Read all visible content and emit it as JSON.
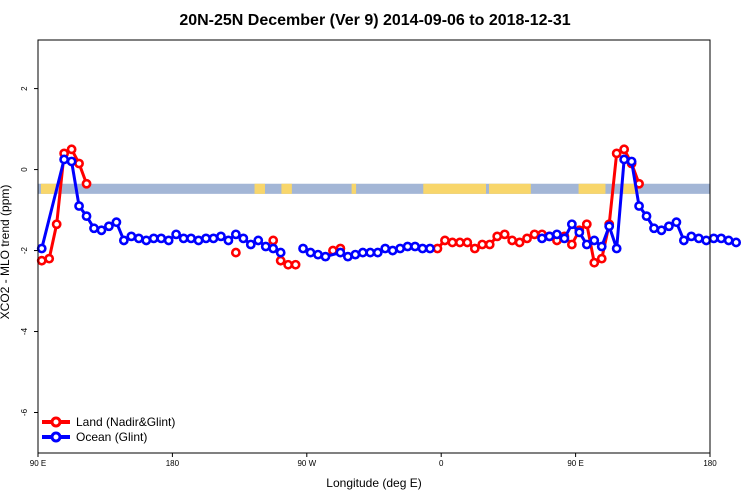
{
  "chart_data": {
    "type": "line",
    "title": "20N-25N December (Ver 9)   2014-09-06 to 2018-12-31",
    "xlabel": "Longitude (deg E)",
    "ylabel": "XCO2 - MLO trend (ppm)",
    "xlim": [
      90,
      540
    ],
    "ylim": [
      -7,
      3.2
    ],
    "x_ticks": [
      {
        "value": 90,
        "label": "90 E"
      },
      {
        "value": 180,
        "label": "180"
      },
      {
        "value": 270,
        "label": "90 W"
      },
      {
        "value": 360,
        "label": "0"
      },
      {
        "value": 450,
        "label": "90 E"
      },
      {
        "value": 540,
        "label": "180"
      }
    ],
    "y_ticks": [
      {
        "value": 2,
        "label": "2"
      },
      {
        "value": 0,
        "label": "0"
      },
      {
        "value": -2,
        "label": "-2"
      },
      {
        "value": -4,
        "label": "-4"
      },
      {
        "value": -6,
        "label": "-6"
      }
    ],
    "land_band": {
      "y_top": -0.35,
      "y_bottom": -0.6,
      "ocean_color": "#a3b6d6",
      "land_color": "#f8d66b"
    },
    "land_mask_segments": [
      [
        92,
        102
      ],
      [
        235,
        242
      ],
      [
        253,
        260
      ],
      [
        300,
        303
      ],
      [
        348,
        390
      ],
      [
        392,
        420
      ],
      [
        452,
        470
      ],
      [
        482,
        492
      ]
    ],
    "series": [
      {
        "name": "Land (Nadir&Glint)",
        "color": "#ff0000",
        "segments": [
          [
            [
              92.5,
              -2.25
            ],
            [
              97.5,
              -2.2
            ],
            [
              102.5,
              -1.35
            ],
            [
              107.5,
              0.4
            ],
            [
              112.5,
              0.5
            ],
            [
              117.5,
              0.15
            ],
            [
              122.5,
              -0.35
            ]
          ],
          [
            [
              222.5,
              -2.05
            ]
          ],
          [
            [
              247.5,
              -1.75
            ],
            [
              252.5,
              -2.25
            ],
            [
              257.5,
              -2.35
            ],
            [
              262.5,
              -2.35
            ]
          ],
          [
            [
              287.5,
              -2.0
            ],
            [
              292.5,
              -1.95
            ]
          ],
          [
            [
              357.5,
              -1.95
            ],
            [
              362.5,
              -1.75
            ],
            [
              367.5,
              -1.8
            ],
            [
              372.5,
              -1.8
            ],
            [
              377.5,
              -1.8
            ],
            [
              382.5,
              -1.95
            ],
            [
              387.5,
              -1.85
            ],
            [
              392.5,
              -1.85
            ],
            [
              397.5,
              -1.65
            ],
            [
              402.5,
              -1.6
            ],
            [
              407.5,
              -1.75
            ],
            [
              412.5,
              -1.8
            ],
            [
              417.5,
              -1.7
            ],
            [
              422.5,
              -1.6
            ],
            [
              427.5,
              -1.6
            ],
            [
              432.5,
              -1.65
            ],
            [
              437.5,
              -1.75
            ],
            [
              442.5,
              -1.65
            ],
            [
              447.5,
              -1.85
            ],
            [
              452.5,
              -1.5
            ],
            [
              457.5,
              -1.35
            ],
            [
              462.5,
              -2.3
            ],
            [
              467.5,
              -2.2
            ],
            [
              472.5,
              -1.35
            ],
            [
              477.5,
              0.4
            ],
            [
              482.5,
              0.5
            ],
            [
              487.5,
              0.15
            ],
            [
              492.5,
              -0.35
            ]
          ]
        ]
      },
      {
        "name": "Ocean (Glint)",
        "color": "#0000ff",
        "segments": [
          [
            [
              92.5,
              -1.95
            ],
            [
              107.5,
              0.25
            ],
            [
              112.5,
              0.2
            ],
            [
              117.5,
              -0.9
            ],
            [
              122.5,
              -1.15
            ],
            [
              127.5,
              -1.45
            ],
            [
              132.5,
              -1.5
            ],
            [
              137.5,
              -1.4
            ],
            [
              142.5,
              -1.3
            ],
            [
              147.5,
              -1.75
            ],
            [
              152.5,
              -1.65
            ],
            [
              157.5,
              -1.7
            ],
            [
              162.5,
              -1.75
            ],
            [
              167.5,
              -1.7
            ],
            [
              172.5,
              -1.7
            ],
            [
              177.5,
              -1.75
            ],
            [
              182.5,
              -1.6
            ],
            [
              187.5,
              -1.7
            ],
            [
              192.5,
              -1.7
            ],
            [
              197.5,
              -1.75
            ],
            [
              202.5,
              -1.7
            ],
            [
              207.5,
              -1.7
            ],
            [
              212.5,
              -1.65
            ],
            [
              217.5,
              -1.75
            ],
            [
              222.5,
              -1.6
            ],
            [
              227.5,
              -1.7
            ],
            [
              232.5,
              -1.85
            ],
            [
              237.5,
              -1.75
            ],
            [
              242.5,
              -1.9
            ],
            [
              247.5,
              -1.95
            ],
            [
              252.5,
              -2.05
            ]
          ],
          [
            [
              267.5,
              -1.95
            ],
            [
              272.5,
              -2.05
            ],
            [
              277.5,
              -2.1
            ],
            [
              282.5,
              -2.15
            ],
            [
              292.5,
              -2.05
            ],
            [
              297.5,
              -2.15
            ],
            [
              302.5,
              -2.1
            ],
            [
              307.5,
              -2.05
            ],
            [
              312.5,
              -2.05
            ],
            [
              317.5,
              -2.05
            ],
            [
              322.5,
              -1.95
            ],
            [
              327.5,
              -2.0
            ],
            [
              332.5,
              -1.95
            ],
            [
              337.5,
              -1.9
            ],
            [
              342.5,
              -1.9
            ],
            [
              347.5,
              -1.95
            ],
            [
              352.5,
              -1.95
            ]
          ],
          [
            [
              427.5,
              -1.7
            ],
            [
              432.5,
              -1.65
            ],
            [
              437.5,
              -1.6
            ],
            [
              442.5,
              -1.7
            ],
            [
              447.5,
              -1.35
            ],
            [
              452.5,
              -1.55
            ],
            [
              457.5,
              -1.85
            ],
            [
              462.5,
              -1.75
            ],
            [
              467.5,
              -1.9
            ],
            [
              472.5,
              -1.4
            ],
            [
              477.5,
              -1.95
            ],
            [
              482.5,
              0.25
            ],
            [
              487.5,
              0.2
            ],
            [
              492.5,
              -0.9
            ],
            [
              497.5,
              -1.15
            ],
            [
              502.5,
              -1.45
            ],
            [
              507.5,
              -1.5
            ],
            [
              512.5,
              -1.4
            ],
            [
              517.5,
              -1.3
            ],
            [
              522.5,
              -1.75
            ],
            [
              527.5,
              -1.65
            ],
            [
              532.5,
              -1.7
            ],
            [
              537.5,
              -1.75
            ],
            [
              542.5,
              -1.7
            ],
            [
              547.5,
              -1.7
            ],
            [
              552.5,
              -1.75
            ],
            [
              557.5,
              -1.8
            ]
          ]
        ]
      }
    ],
    "legend": {
      "position": "bottom-left",
      "entries": [
        "Land (Nadir&Glint)",
        "Ocean (Glint)"
      ]
    }
  }
}
